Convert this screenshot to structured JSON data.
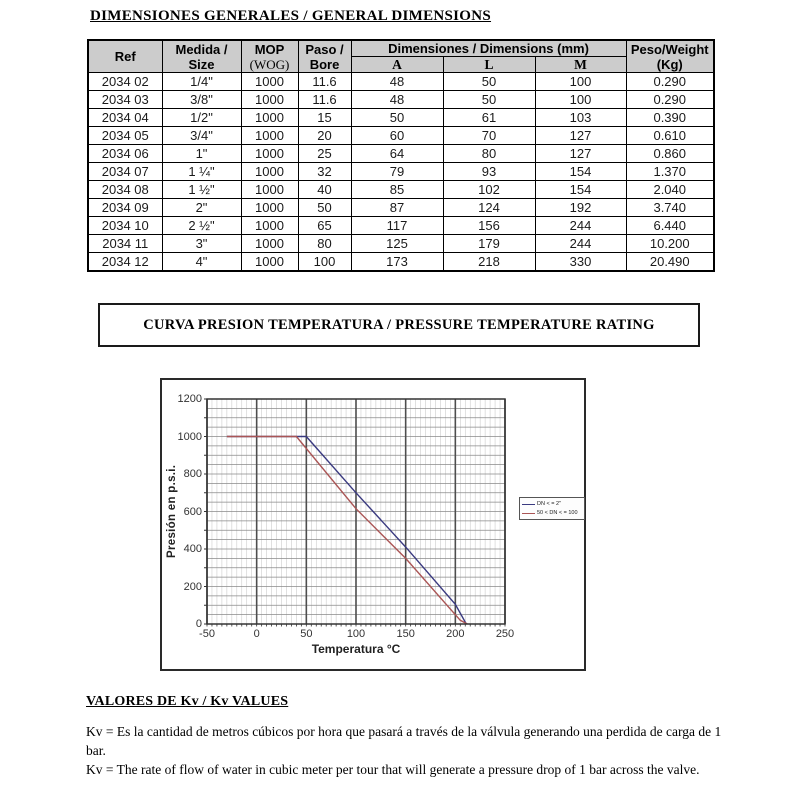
{
  "document": {
    "heading_dimensions": "DIMENSIONES GENERALES / GENERAL DIMENSIONS",
    "heading_curve": "CURVA PRESION TEMPERATURA / PRESSURE TEMPERATURE RATING",
    "heading_kv": "VALORES DE Kv / Kv VALUES",
    "kv_paragraph_es": "Kv = Es la cantidad de metros cúbicos por hora que pasará a través de la válvula generando una perdida de carga de 1 bar.",
    "kv_paragraph_en": "Kv =  The rate of flow of water in cubic meter per tour that will generate a pressure drop of 1 bar across the valve."
  },
  "dimensions_table": {
    "col_ref": "Ref",
    "col_size_l1": "Medida /",
    "col_size_l2": "Size",
    "col_mop_l1": "MOP",
    "col_mop_l2": "(WOG)",
    "col_bore_l1": "Paso /",
    "col_bore_l2": "Bore",
    "col_dims_group": "Dimensiones / Dimensions (mm)",
    "col_dim_a": "A",
    "col_dim_l": "L",
    "col_dim_m": "M",
    "col_weight_l1": "Peso/Weight",
    "col_weight_l2": "(Kg)",
    "rows": [
      [
        "2034 02",
        "1/4\"",
        "1000",
        "11.6",
        "48",
        "50",
        "100",
        "0.290"
      ],
      [
        "2034 03",
        "3/8\"",
        "1000",
        "11.6",
        "48",
        "50",
        "100",
        "0.290"
      ],
      [
        "2034 04",
        "1/2\"",
        "1000",
        "15",
        "50",
        "61",
        "103",
        "0.390"
      ],
      [
        "2034 05",
        "3/4\"",
        "1000",
        "20",
        "60",
        "70",
        "127",
        "0.610"
      ],
      [
        "2034 06",
        "1\"",
        "1000",
        "25",
        "64",
        "80",
        "127",
        "0.860"
      ],
      [
        "2034 07",
        "1 ¼\"",
        "1000",
        "32",
        "79",
        "93",
        "154",
        "1.370"
      ],
      [
        "2034 08",
        "1 ½\"",
        "1000",
        "40",
        "85",
        "102",
        "154",
        "2.040"
      ],
      [
        "2034 09",
        "2\"",
        "1000",
        "50",
        "87",
        "124",
        "192",
        "3.740"
      ],
      [
        "2034 10",
        "2 ½\"",
        "1000",
        "65",
        "117",
        "156",
        "244",
        "6.440"
      ],
      [
        "2034 11",
        "3\"",
        "1000",
        "80",
        "125",
        "179",
        "244",
        "10.200"
      ],
      [
        "2034 12",
        "4\"",
        "1000",
        "100",
        "173",
        "218",
        "330",
        "20.490"
      ]
    ]
  },
  "chart_data": {
    "type": "line",
    "title": "",
    "xlabel": "Temperatura °C",
    "ylabel": "Presión en p.s.i.",
    "xlim": [
      -50,
      250
    ],
    "ylim": [
      0,
      1200
    ],
    "xticks": [
      -50,
      0,
      50,
      100,
      150,
      200,
      250
    ],
    "yticks": [
      0,
      200,
      400,
      600,
      800,
      1000,
      1200
    ],
    "grid": "major vertical every 50 °C, minor vertical every 5 °C, horizontal every 50 psi",
    "legend_position": "right-inside-frame",
    "series": [
      {
        "name": "DN < = 2\"",
        "color": "#3a3a80",
        "points": [
          [
            -30,
            1000
          ],
          [
            50,
            1000
          ],
          [
            100,
            700
          ],
          [
            150,
            410
          ],
          [
            200,
            105
          ],
          [
            211,
            0
          ]
        ]
      },
      {
        "name": "50 < DN < = 100",
        "color": "#aa5555",
        "points": [
          [
            -30,
            1000
          ],
          [
            40,
            1000
          ],
          [
            100,
            615
          ],
          [
            150,
            350
          ],
          [
            205,
            20
          ],
          [
            212,
            0
          ]
        ]
      }
    ]
  }
}
